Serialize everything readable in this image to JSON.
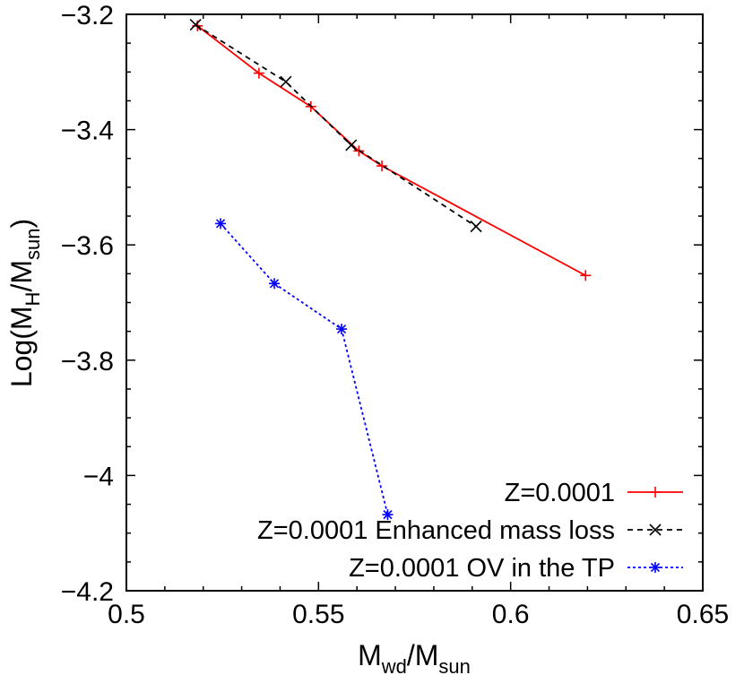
{
  "chart_data": {
    "type": "line",
    "title": "",
    "xlabel": {
      "main": "M",
      "sub": "wd",
      "sep": "/M",
      "sub2": "sun"
    },
    "ylabel": {
      "pre": "Log(M",
      "sub": "H",
      "sep": "/M",
      "sub2": "sun",
      "post": ")"
    },
    "xlim": [
      0.5,
      0.65
    ],
    "ylim": [
      -4.2,
      -3.2
    ],
    "x_ticks": [
      0.5,
      0.55,
      0.6,
      0.65
    ],
    "x_tick_labels": [
      "0.5",
      "0.55",
      "0.6",
      "0.65"
    ],
    "y_ticks": [
      -3.2,
      -3.4,
      -3.6,
      -3.8,
      -4.0,
      -4.2
    ],
    "y_tick_labels": [
      "−3.2",
      "−3.4",
      "−3.6",
      "−3.8",
      "−4",
      "−4.2"
    ],
    "grid": false,
    "legend_position": "bottom-right",
    "series": [
      {
        "name": "Z=0.0001",
        "color": "#ff0000",
        "marker": "plus",
        "dash": "solid",
        "x": [
          0.5185,
          0.5345,
          0.548,
          0.5605,
          0.5665,
          0.6195
        ],
        "y": [
          -3.22,
          -3.302,
          -3.36,
          -3.437,
          -3.463,
          -3.653
        ]
      },
      {
        "name": "Z=0.0001 Enhanced mass loss",
        "color": "#000000",
        "marker": "cross",
        "dash": "dashed",
        "x": [
          0.518,
          0.5415,
          0.5585,
          0.591
        ],
        "y": [
          -3.218,
          -3.317,
          -3.427,
          -3.568
        ]
      },
      {
        "name": "Z=0.0001 OV in the TP",
        "color": "#0000ff",
        "marker": "star",
        "dash": "dotted",
        "x": [
          0.5245,
          0.5385,
          0.556,
          0.568
        ],
        "y": [
          -3.563,
          -3.667,
          -3.746,
          -4.068
        ]
      }
    ]
  }
}
